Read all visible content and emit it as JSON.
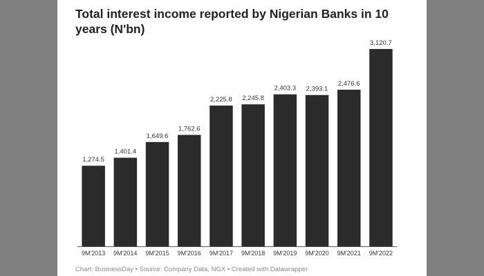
{
  "chart_data": {
    "type": "bar",
    "title": "Total interest income reported by Nigerian Banks in 10 years (N'bn)",
    "categories": [
      "9M'2013",
      "9M'2014",
      "9M'2015",
      "9M'2016",
      "9M'2017",
      "9M'2018",
      "9M'2019",
      "9M'2020",
      "9M'2021",
      "9M'2022"
    ],
    "values": [
      1274.5,
      1401.4,
      1649.6,
      1762.6,
      2225.8,
      2245.8,
      2403.3,
      2393.1,
      2476.6,
      3120.7
    ],
    "data_labels": [
      "1,274.5",
      "1,401.4",
      "1,649.6",
      "1,762.6",
      "2,225.8",
      "2,245.8",
      "2,403.3",
      "2,393.1",
      "2,476.6",
      "3,120.7"
    ],
    "ylim": [
      0,
      3120.7
    ],
    "xlabel": "",
    "ylabel": "",
    "grid": false,
    "bar_color": "#2b2b2b",
    "baseline_color": "#555555"
  },
  "footer": {
    "credit": "Chart: BusinessDay • Source: Company Data, NGX • Created with Datawrapper"
  },
  "colors": {
    "page_background": "#808080",
    "card_background": "#ffffff",
    "title": "#222222",
    "label": "#333333",
    "footer": "#888888"
  }
}
